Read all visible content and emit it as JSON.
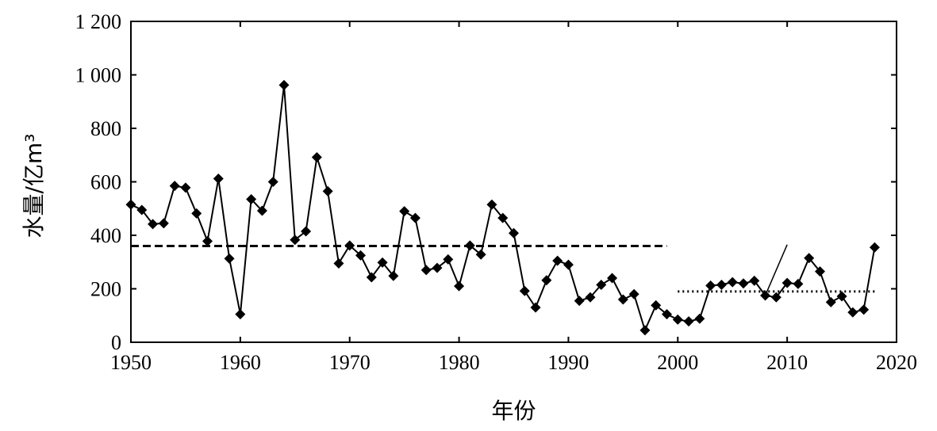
{
  "chart_data": {
    "type": "line",
    "title": "",
    "xlabel": "年份",
    "ylabel": "水量/亿m³",
    "xlim": [
      1950,
      2020
    ],
    "ylim": [
      0,
      1200
    ],
    "x_ticks": [
      1950,
      1960,
      1970,
      1980,
      1990,
      2000,
      2010,
      2020
    ],
    "y_ticks": [
      0,
      200,
      400,
      600,
      800,
      1000,
      1200
    ],
    "y_tick_labels": [
      "0",
      "200",
      "400",
      "600",
      "800",
      "1 000",
      "1 200"
    ],
    "grid": false,
    "legend": false,
    "x": [
      1950,
      1951,
      1952,
      1953,
      1954,
      1955,
      1956,
      1957,
      1958,
      1959,
      1960,
      1961,
      1962,
      1963,
      1964,
      1965,
      1966,
      1967,
      1968,
      1969,
      1970,
      1971,
      1972,
      1973,
      1974,
      1975,
      1976,
      1977,
      1978,
      1979,
      1980,
      1981,
      1982,
      1983,
      1984,
      1985,
      1986,
      1987,
      1988,
      1989,
      1990,
      1991,
      1992,
      1993,
      1994,
      1995,
      1996,
      1997,
      1998,
      1999,
      2000,
      2001,
      2002,
      2003,
      2004,
      2005,
      2006,
      2007,
      2008,
      2009,
      2010,
      2011,
      2012,
      2013,
      2014,
      2015,
      2016,
      2017,
      2018
    ],
    "series": [
      {
        "values": [
          515,
          495,
          442,
          445,
          585,
          578,
          482,
          378,
          612,
          313,
          105,
          535,
          492,
          600,
          962,
          383,
          415,
          692,
          565,
          295,
          362,
          325,
          243,
          298,
          248,
          490,
          465,
          270,
          278,
          310,
          210,
          362,
          328,
          515,
          465,
          408,
          192,
          130,
          232,
          305,
          290,
          155,
          168,
          215,
          240,
          160,
          180,
          45,
          138,
          105,
          85,
          78,
          88,
          212,
          215,
          225,
          220,
          230,
          175,
          168,
          222,
          218,
          315,
          265,
          150,
          172,
          112,
          122,
          355
        ]
      },
      {
        "type": "reference",
        "style": "dashed",
        "x": [
          1950,
          1999
        ],
        "y": 360
      },
      {
        "type": "reference",
        "style": "dotted",
        "x": [
          2000,
          2018
        ],
        "y": 190
      }
    ],
    "annotations": [
      {
        "type": "line",
        "from": [
          2008,
          175
        ],
        "to": [
          2010,
          365
        ]
      }
    ]
  }
}
